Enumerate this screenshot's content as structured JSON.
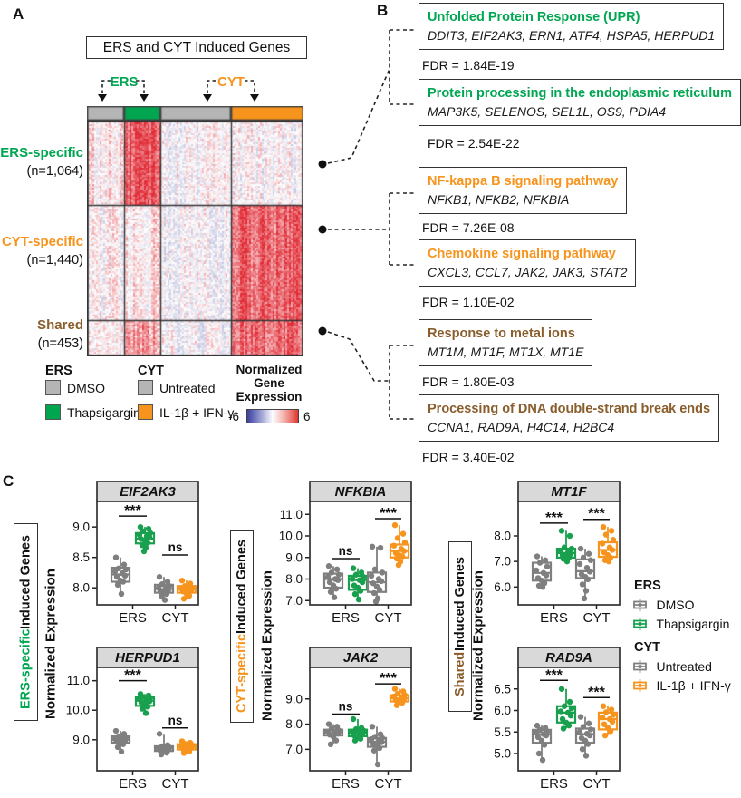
{
  "panel_labels": {
    "a": "A",
    "b": "B",
    "c": "C"
  },
  "panel_a": {
    "title": "ERS and CYT Induced Genes",
    "bracket_labels": {
      "ers": "ERS",
      "cyt": "CYT"
    },
    "bracket_colors": {
      "ers": "#00a651",
      "cyt": "#f7941d"
    },
    "header_colors": [
      "#b5b5b5",
      "#00a550",
      "#b5b5b5",
      "#f7941d"
    ],
    "row_groups": [
      {
        "label": "ERS-specific",
        "count_label": "(n=1,064)",
        "count": 1064,
        "label_color": "#00a651",
        "intensity": [
          0.08,
          0.75,
          -0.07,
          -0.05
        ]
      },
      {
        "label": "CYT-specific",
        "count_label": "(n=1,440)",
        "count": 1440,
        "label_color": "#f7941d",
        "intensity": [
          0.0,
          0.1,
          -0.07,
          0.7
        ]
      },
      {
        "label": "Shared",
        "count_label": "(n=453)",
        "count": 453,
        "label_color": "#8a5d2c",
        "intensity": [
          -0.05,
          0.42,
          -0.07,
          0.66
        ]
      }
    ],
    "legend": {
      "ers_header": "ERS",
      "cyt_header": "CYT",
      "items": [
        {
          "label": "DMSO",
          "color": "#b5b5b5"
        },
        {
          "label": "Thapsigargin",
          "color": "#00a550"
        },
        {
          "label": "Untreated",
          "color": "#b5b5b5"
        },
        {
          "label": "IL-1β + IFN-γ",
          "color": "#f7941d"
        }
      ],
      "colorbar": {
        "title_lines": [
          "Normalized",
          "Gene",
          "Expression"
        ],
        "min_label": "-6",
        "max_label": "6",
        "min_color": "#3d3f9f",
        "max_color": "#e2372f"
      }
    }
  },
  "panel_b": {
    "pathways": [
      {
        "title": "Unfolded Protein Response (UPR)",
        "genes": "DDIT3, EIF2AK3, ERN1, ATF4, HSPA5, HERPUD1",
        "fdr": "FDR = 1.84E-19",
        "color": "#00a651"
      },
      {
        "title": "Protein processing in the endoplasmic reticulum",
        "genes": "MAP3K5, SELENOS, SEL1L, OS9, PDIA4",
        "fdr": "FDR = 2.54E-22",
        "color": "#00a651"
      },
      {
        "title": "NF-kappa B signaling pathway",
        "genes": "NFKB1, NFKB2, NFKBIA",
        "fdr": "FDR = 7.26E-08",
        "color": "#f7941d"
      },
      {
        "title": "Chemokine signaling pathway",
        "genes": "CXCL3, CCL7, JAK2, JAK3, STAT2",
        "fdr": "FDR = 1.10E-02",
        "color": "#f7941d"
      },
      {
        "title": "Response to metal ions",
        "genes": "MT1M, MT1F, MT1X, MT1E",
        "fdr": "FDR = 1.80E-03",
        "color": "#8a5d2c"
      },
      {
        "title": "Processing of DNA double-strand break ends",
        "genes": "CCNA1, RAD9A, H4C14, H2BC4",
        "fdr": "FDR = 3.40E-02",
        "color": "#8a5d2c"
      }
    ]
  },
  "panel_c": {
    "colors": {
      "gray": "#7f7f7f",
      "green": "#18a04e",
      "orange": "#f7941d"
    },
    "x_labels": [
      "ERS",
      "CYT"
    ],
    "y_axis_label": "Normalized Expression",
    "sidebars": [
      {
        "colored": "ERS-specific",
        "rest": " Induced Genes",
        "color": "#00a651"
      },
      {
        "colored": "CYT-specific",
        "rest": " Induced Genes",
        "color": "#f7941d"
      },
      {
        "colored": "Shared",
        "rest": " Induced Genes",
        "color": "#8a5d2c"
      }
    ],
    "legend": {
      "ers_header": "ERS",
      "cyt_header": "CYT",
      "items": [
        {
          "label": "DMSO",
          "color": "#7f7f7f"
        },
        {
          "label": "Thapsigargin",
          "color": "#18a04e"
        },
        {
          "label": "Untreated",
          "color": "#7f7f7f"
        },
        {
          "label": "IL-1β + IFN-γ",
          "color": "#f7941d"
        }
      ]
    },
    "genes": [
      {
        "name": "EIF2AK3",
        "ylim": [
          7.72,
          9.42
        ],
        "yticks": [
          9.0,
          8.5,
          8.0
        ],
        "ytick_labels": [
          "9.0",
          "8.5",
          "8.0"
        ],
        "sigs": [
          {
            "label": "***",
            "y": 9.18
          },
          {
            "label": "ns",
            "y": 8.54
          }
        ],
        "boxes": [
          {
            "color": "gray",
            "lo": 7.9,
            "q1": 8.1,
            "med": 8.22,
            "q3": 8.33,
            "hi": 8.5,
            "points": [
              8.5,
              8.38,
              8.32,
              8.3,
              8.27,
              8.24,
              8.2,
              8.18,
              8.12,
              8.1,
              8.05,
              7.9
            ]
          },
          {
            "color": "green",
            "lo": 8.6,
            "q1": 8.73,
            "med": 8.81,
            "q3": 8.9,
            "hi": 9.0,
            "points": [
              9.0,
              8.97,
              8.93,
              8.9,
              8.87,
              8.85,
              8.83,
              8.8,
              8.78,
              8.74,
              8.7,
              8.66,
              8.6
            ]
          },
          {
            "color": "gray",
            "lo": 7.8,
            "q1": 7.92,
            "med": 7.98,
            "q3": 8.05,
            "hi": 8.18,
            "points": [
              8.18,
              8.1,
              8.06,
              8.03,
              8.0,
              7.99,
              7.97,
              7.95,
              7.93,
              7.9,
              7.87,
              7.8
            ]
          },
          {
            "color": "orange",
            "lo": 7.82,
            "q1": 7.92,
            "med": 7.97,
            "q3": 8.03,
            "hi": 8.12,
            "points": [
              8.12,
              8.07,
              8.03,
              8.0,
              7.99,
              7.97,
              7.96,
              7.94,
              7.9,
              7.87,
              7.82
            ]
          }
        ]
      },
      {
        "name": "NFKBIA",
        "ylim": [
          6.8,
          11.6
        ],
        "yticks": [
          11.0,
          10.0,
          9.0,
          8.0,
          7.0
        ],
        "ytick_labels": [
          "11.0",
          "10.0",
          "9.0",
          "8.0",
          "7.0"
        ],
        "sigs": [
          {
            "label": "ns",
            "y": 8.95
          },
          {
            "label": "***",
            "y": 10.8
          }
        ],
        "boxes": [
          {
            "color": "gray",
            "lo": 7.15,
            "q1": 7.6,
            "med": 8.0,
            "q3": 8.25,
            "hi": 8.6,
            "points": [
              8.6,
              8.45,
              8.3,
              8.2,
              8.1,
              8.0,
              7.95,
              7.85,
              7.7,
              7.55,
              7.4,
              7.15
            ]
          },
          {
            "color": "green",
            "lo": 7.05,
            "q1": 7.5,
            "med": 7.95,
            "q3": 8.15,
            "hi": 8.5,
            "points": [
              8.5,
              8.3,
              8.2,
              8.1,
              8.0,
              7.95,
              7.85,
              7.7,
              7.6,
              7.45,
              7.3,
              7.05
            ]
          },
          {
            "color": "gray",
            "lo": 6.95,
            "q1": 7.4,
            "med": 7.85,
            "q3": 8.3,
            "hi": 9.5,
            "points": [
              9.5,
              9.45,
              8.45,
              8.3,
              8.15,
              8.0,
              7.9,
              7.8,
              7.65,
              7.5,
              7.35,
              7.1,
              6.95
            ]
          },
          {
            "color": "orange",
            "lo": 8.65,
            "q1": 9.0,
            "med": 9.3,
            "q3": 9.6,
            "hi": 10.5,
            "points": [
              10.5,
              10.1,
              9.9,
              9.7,
              9.55,
              9.4,
              9.3,
              9.2,
              9.1,
              9.05,
              8.95,
              8.8,
              8.65
            ]
          }
        ]
      },
      {
        "name": "MT1F",
        "ylim": [
          5.3,
          9.35
        ],
        "yticks": [
          8.0,
          7.0,
          6.0
        ],
        "ytick_labels": [
          "8.0",
          "7.0",
          "6.0"
        ],
        "sigs": [
          {
            "label": "***",
            "y": 8.5
          },
          {
            "label": "***",
            "y": 8.65
          }
        ],
        "boxes": [
          {
            "color": "gray",
            "lo": 6.0,
            "q1": 6.25,
            "med": 6.55,
            "q3": 6.95,
            "hi": 7.2,
            "points": [
              7.2,
              7.05,
              6.95,
              6.8,
              6.65,
              6.55,
              6.45,
              6.35,
              6.25,
              6.15,
              6.05,
              6.0
            ]
          },
          {
            "color": "green",
            "lo": 7.0,
            "q1": 7.15,
            "med": 7.33,
            "q3": 7.5,
            "hi": 8.2,
            "points": [
              8.2,
              8.0,
              7.55,
              7.5,
              7.42,
              7.35,
              7.3,
              7.25,
              7.2,
              7.15,
              7.1,
              7.0
            ]
          },
          {
            "color": "gray",
            "lo": 5.55,
            "q1": 6.35,
            "med": 6.62,
            "q3": 7.08,
            "hi": 7.5,
            "points": [
              7.5,
              7.3,
              7.15,
              7.05,
              6.9,
              6.75,
              6.6,
              6.5,
              6.4,
              6.3,
              6.1,
              5.85,
              5.55
            ]
          },
          {
            "color": "orange",
            "lo": 7.0,
            "q1": 7.18,
            "med": 7.45,
            "q3": 7.75,
            "hi": 8.35,
            "points": [
              8.35,
              8.2,
              8.05,
              7.85,
              7.7,
              7.55,
              7.45,
              7.35,
              7.25,
              7.15,
              7.05,
              7.0
            ]
          }
        ]
      },
      {
        "name": "HERPUD1",
        "ylim": [
          7.95,
          11.45
        ],
        "yticks": [
          11.0,
          10.0,
          9.0
        ],
        "ytick_labels": [
          "11.0",
          "10.0",
          "9.0"
        ],
        "sigs": [
          {
            "label": "***",
            "y": 11.0
          },
          {
            "label": "ns",
            "y": 9.4
          }
        ],
        "boxes": [
          {
            "color": "gray",
            "lo": 8.6,
            "q1": 8.9,
            "med": 9.0,
            "q3": 9.12,
            "hi": 9.3,
            "points": [
              9.3,
              9.2,
              9.12,
              9.07,
              9.03,
              9.0,
              8.98,
              8.95,
              8.9,
              8.85,
              8.75,
              8.6
            ]
          },
          {
            "color": "green",
            "lo": 9.9,
            "q1": 10.15,
            "med": 10.32,
            "q3": 10.45,
            "hi": 10.55,
            "points": [
              10.55,
              10.5,
              10.45,
              10.42,
              10.38,
              10.33,
              10.3,
              10.26,
              10.2,
              10.12,
              10.05,
              9.9
            ]
          },
          {
            "color": "gray",
            "lo": 8.5,
            "q1": 8.62,
            "med": 8.7,
            "q3": 8.78,
            "hi": 9.2,
            "points": [
              9.2,
              8.82,
              8.78,
              8.74,
              8.71,
              8.69,
              8.66,
              8.63,
              8.6,
              8.56,
              8.5
            ]
          },
          {
            "color": "orange",
            "lo": 8.55,
            "q1": 8.67,
            "med": 8.75,
            "q3": 8.85,
            "hi": 8.95,
            "points": [
              8.95,
              8.9,
              8.86,
              8.82,
              8.78,
              8.75,
              8.72,
              8.69,
              8.65,
              8.6,
              8.55
            ]
          }
        ]
      },
      {
        "name": "JAK2",
        "ylim": [
          6.15,
          10.25
        ],
        "yticks": [
          9.0,
          8.0,
          7.0
        ],
        "ytick_labels": [
          "9.0",
          "8.0",
          "7.0"
        ],
        "sigs": [
          {
            "label": "ns",
            "y": 8.4
          },
          {
            "label": "***",
            "y": 9.6
          }
        ],
        "boxes": [
          {
            "color": "gray",
            "lo": 7.2,
            "q1": 7.55,
            "med": 7.65,
            "q3": 7.78,
            "hi": 8.0,
            "points": [
              8.0,
              7.9,
              7.82,
              7.75,
              7.7,
              7.66,
              7.62,
              7.58,
              7.5,
              7.35,
              7.2
            ]
          },
          {
            "color": "green",
            "lo": 7.35,
            "q1": 7.52,
            "med": 7.66,
            "q3": 7.78,
            "hi": 8.2,
            "points": [
              8.2,
              7.85,
              7.8,
              7.75,
              7.7,
              7.66,
              7.6,
              7.55,
              7.5,
              7.42,
              7.35
            ]
          },
          {
            "color": "gray",
            "lo": 6.4,
            "q1": 7.1,
            "med": 7.3,
            "q3": 7.45,
            "hi": 7.9,
            "points": [
              7.9,
              7.6,
              7.5,
              7.45,
              7.4,
              7.33,
              7.28,
              7.22,
              7.15,
              7.05,
              6.95,
              6.4
            ]
          },
          {
            "color": "orange",
            "lo": 8.75,
            "q1": 8.9,
            "med": 9.02,
            "q3": 9.15,
            "hi": 9.4,
            "points": [
              9.4,
              9.3,
              9.2,
              9.15,
              9.1,
              9.05,
              9.0,
              8.95,
              8.9,
              8.85,
              8.75
            ]
          }
        ]
      },
      {
        "name": "RAD9A",
        "ylim": [
          4.6,
          7.0
        ],
        "yticks": [
          6.5,
          6.0,
          5.5,
          5.0
        ],
        "ytick_labels": [
          "6.5",
          "6.0",
          "5.5",
          "5.0"
        ],
        "sigs": [
          {
            "label": "***",
            "y": 6.7
          },
          {
            "label": "***",
            "y": 6.3
          }
        ],
        "boxes": [
          {
            "color": "gray",
            "lo": 4.85,
            "q1": 5.25,
            "med": 5.45,
            "q3": 5.55,
            "hi": 5.65,
            "points": [
              5.65,
              5.6,
              5.55,
              5.52,
              5.48,
              5.45,
              5.42,
              5.38,
              5.3,
              5.2,
              5.0,
              4.85
            ]
          },
          {
            "color": "green",
            "lo": 5.58,
            "q1": 5.72,
            "med": 5.95,
            "q3": 6.1,
            "hi": 6.5,
            "points": [
              6.5,
              6.2,
              6.1,
              6.05,
              5.98,
              5.95,
              5.88,
              5.8,
              5.72,
              5.65,
              5.58
            ]
          },
          {
            "color": "gray",
            "lo": 4.95,
            "q1": 5.25,
            "med": 5.45,
            "q3": 5.58,
            "hi": 5.85,
            "points": [
              5.85,
              5.7,
              5.62,
              5.56,
              5.5,
              5.46,
              5.42,
              5.36,
              5.3,
              5.22,
              5.1,
              4.95
            ]
          },
          {
            "color": "orange",
            "lo": 5.42,
            "q1": 5.56,
            "med": 5.8,
            "q3": 5.95,
            "hi": 6.1,
            "points": [
              6.1,
              6.02,
              5.96,
              5.9,
              5.84,
              5.8,
              5.74,
              5.68,
              5.6,
              5.52,
              5.42
            ]
          }
        ]
      }
    ]
  }
}
